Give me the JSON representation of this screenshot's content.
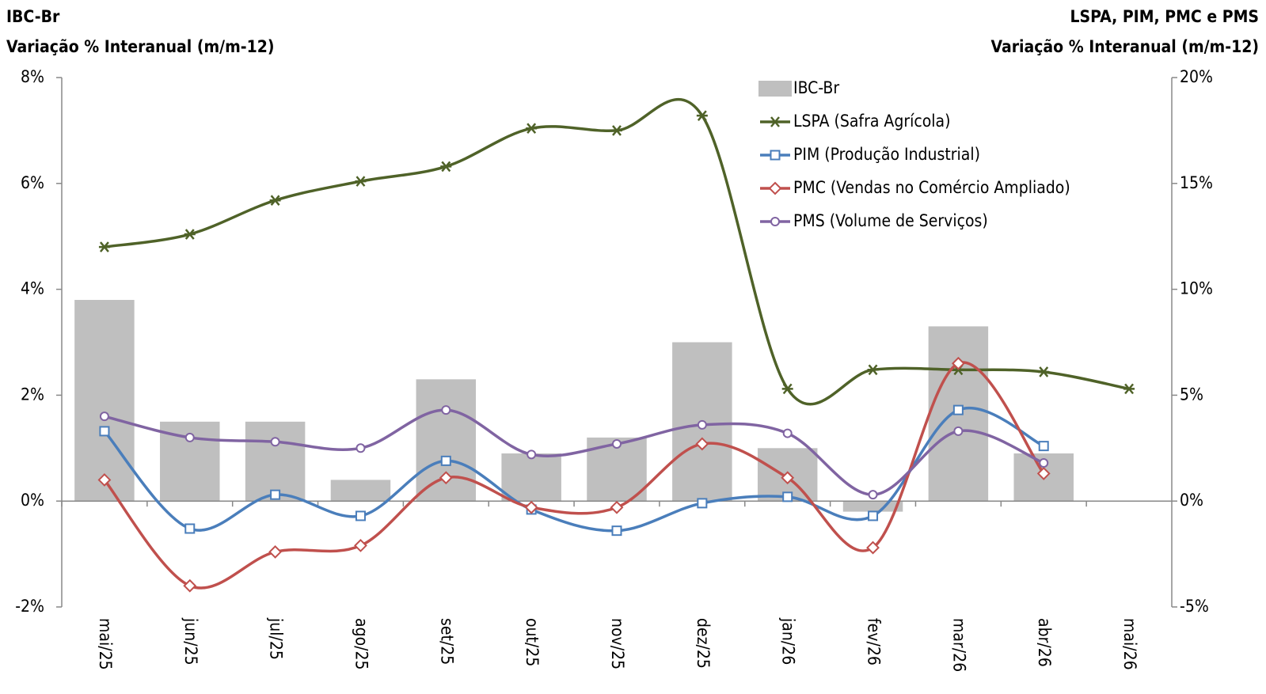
{
  "chart_data": {
    "type": "bar",
    "title_left": "IBC-Br",
    "subtitle_left": "Variação % Interanual (m/m-12)",
    "title_right": "LSPA, PIM, PMC e PMS",
    "subtitle_right": "Variação % Interanual (m/m-12)",
    "categories": [
      "mai/25",
      "jun/25",
      "jul/25",
      "ago/25",
      "set/25",
      "out/25",
      "nov/25",
      "dez/25",
      "jan/26",
      "fev/26",
      "mar/26",
      "abr/26",
      "mai/26"
    ],
    "ylim": [
      -2,
      8
    ],
    "yticks": [
      {
        "value": -2,
        "label": "-2%"
      },
      {
        "value": 0,
        "label": "0%"
      },
      {
        "value": 2,
        "label": "2%"
      },
      {
        "value": 4,
        "label": "4%"
      },
      {
        "value": 6,
        "label": "6%"
      },
      {
        "value": 8,
        "label": "8%"
      }
    ],
    "y2lim": [
      -5,
      20
    ],
    "y2ticks": [
      {
        "value": -5,
        "label": "-5%"
      },
      {
        "value": 0,
        "label": "0%"
      },
      {
        "value": 5,
        "label": "5%"
      },
      {
        "value": 10,
        "label": "10%"
      },
      {
        "value": 15,
        "label": "15%"
      },
      {
        "value": 20,
        "label": "20%"
      }
    ],
    "grid": false,
    "legend": "top-right",
    "series": [
      {
        "name": "IBC-Br",
        "type": "bar",
        "color": "#bfbfbf",
        "values": [
          3.8,
          1.5,
          1.5,
          0.4,
          2.3,
          0.9,
          1.2,
          3.0,
          1.0,
          -0.2,
          3.3,
          0.9,
          null
        ]
      },
      {
        "name": "LSPA (Safra Agrícola)",
        "type": "line",
        "axis": "y2",
        "marker": "star",
        "color": "#4f6228",
        "values": [
          12.0,
          12.6,
          14.2,
          15.1,
          15.8,
          17.6,
          17.5,
          18.2,
          5.3,
          6.2,
          6.2,
          6.1,
          5.3
        ]
      },
      {
        "name": "PIM (Produção Industrial)",
        "type": "line",
        "axis": "y2",
        "marker": "square",
        "color": "#4a7ebb",
        "values": [
          3.3,
          -1.3,
          0.3,
          -0.7,
          1.9,
          -0.4,
          -1.4,
          -0.1,
          0.2,
          -0.7,
          4.3,
          2.6,
          null
        ]
      },
      {
        "name": "PMC (Vendas no Comércio Ampliado)",
        "type": "line",
        "axis": "y2",
        "marker": "diamond",
        "color": "#c0504d",
        "values": [
          1.0,
          -4.0,
          -2.4,
          -2.1,
          1.1,
          -0.3,
          -0.3,
          2.7,
          1.1,
          -2.2,
          6.5,
          1.3,
          null
        ]
      },
      {
        "name": "PMS (Volume de Serviços)",
        "type": "line",
        "axis": "y2",
        "marker": "circle",
        "color": "#8064a2",
        "values": [
          4.0,
          3.0,
          2.8,
          2.5,
          4.3,
          2.2,
          2.7,
          3.6,
          3.2,
          0.3,
          3.3,
          1.8,
          null
        ]
      }
    ]
  }
}
